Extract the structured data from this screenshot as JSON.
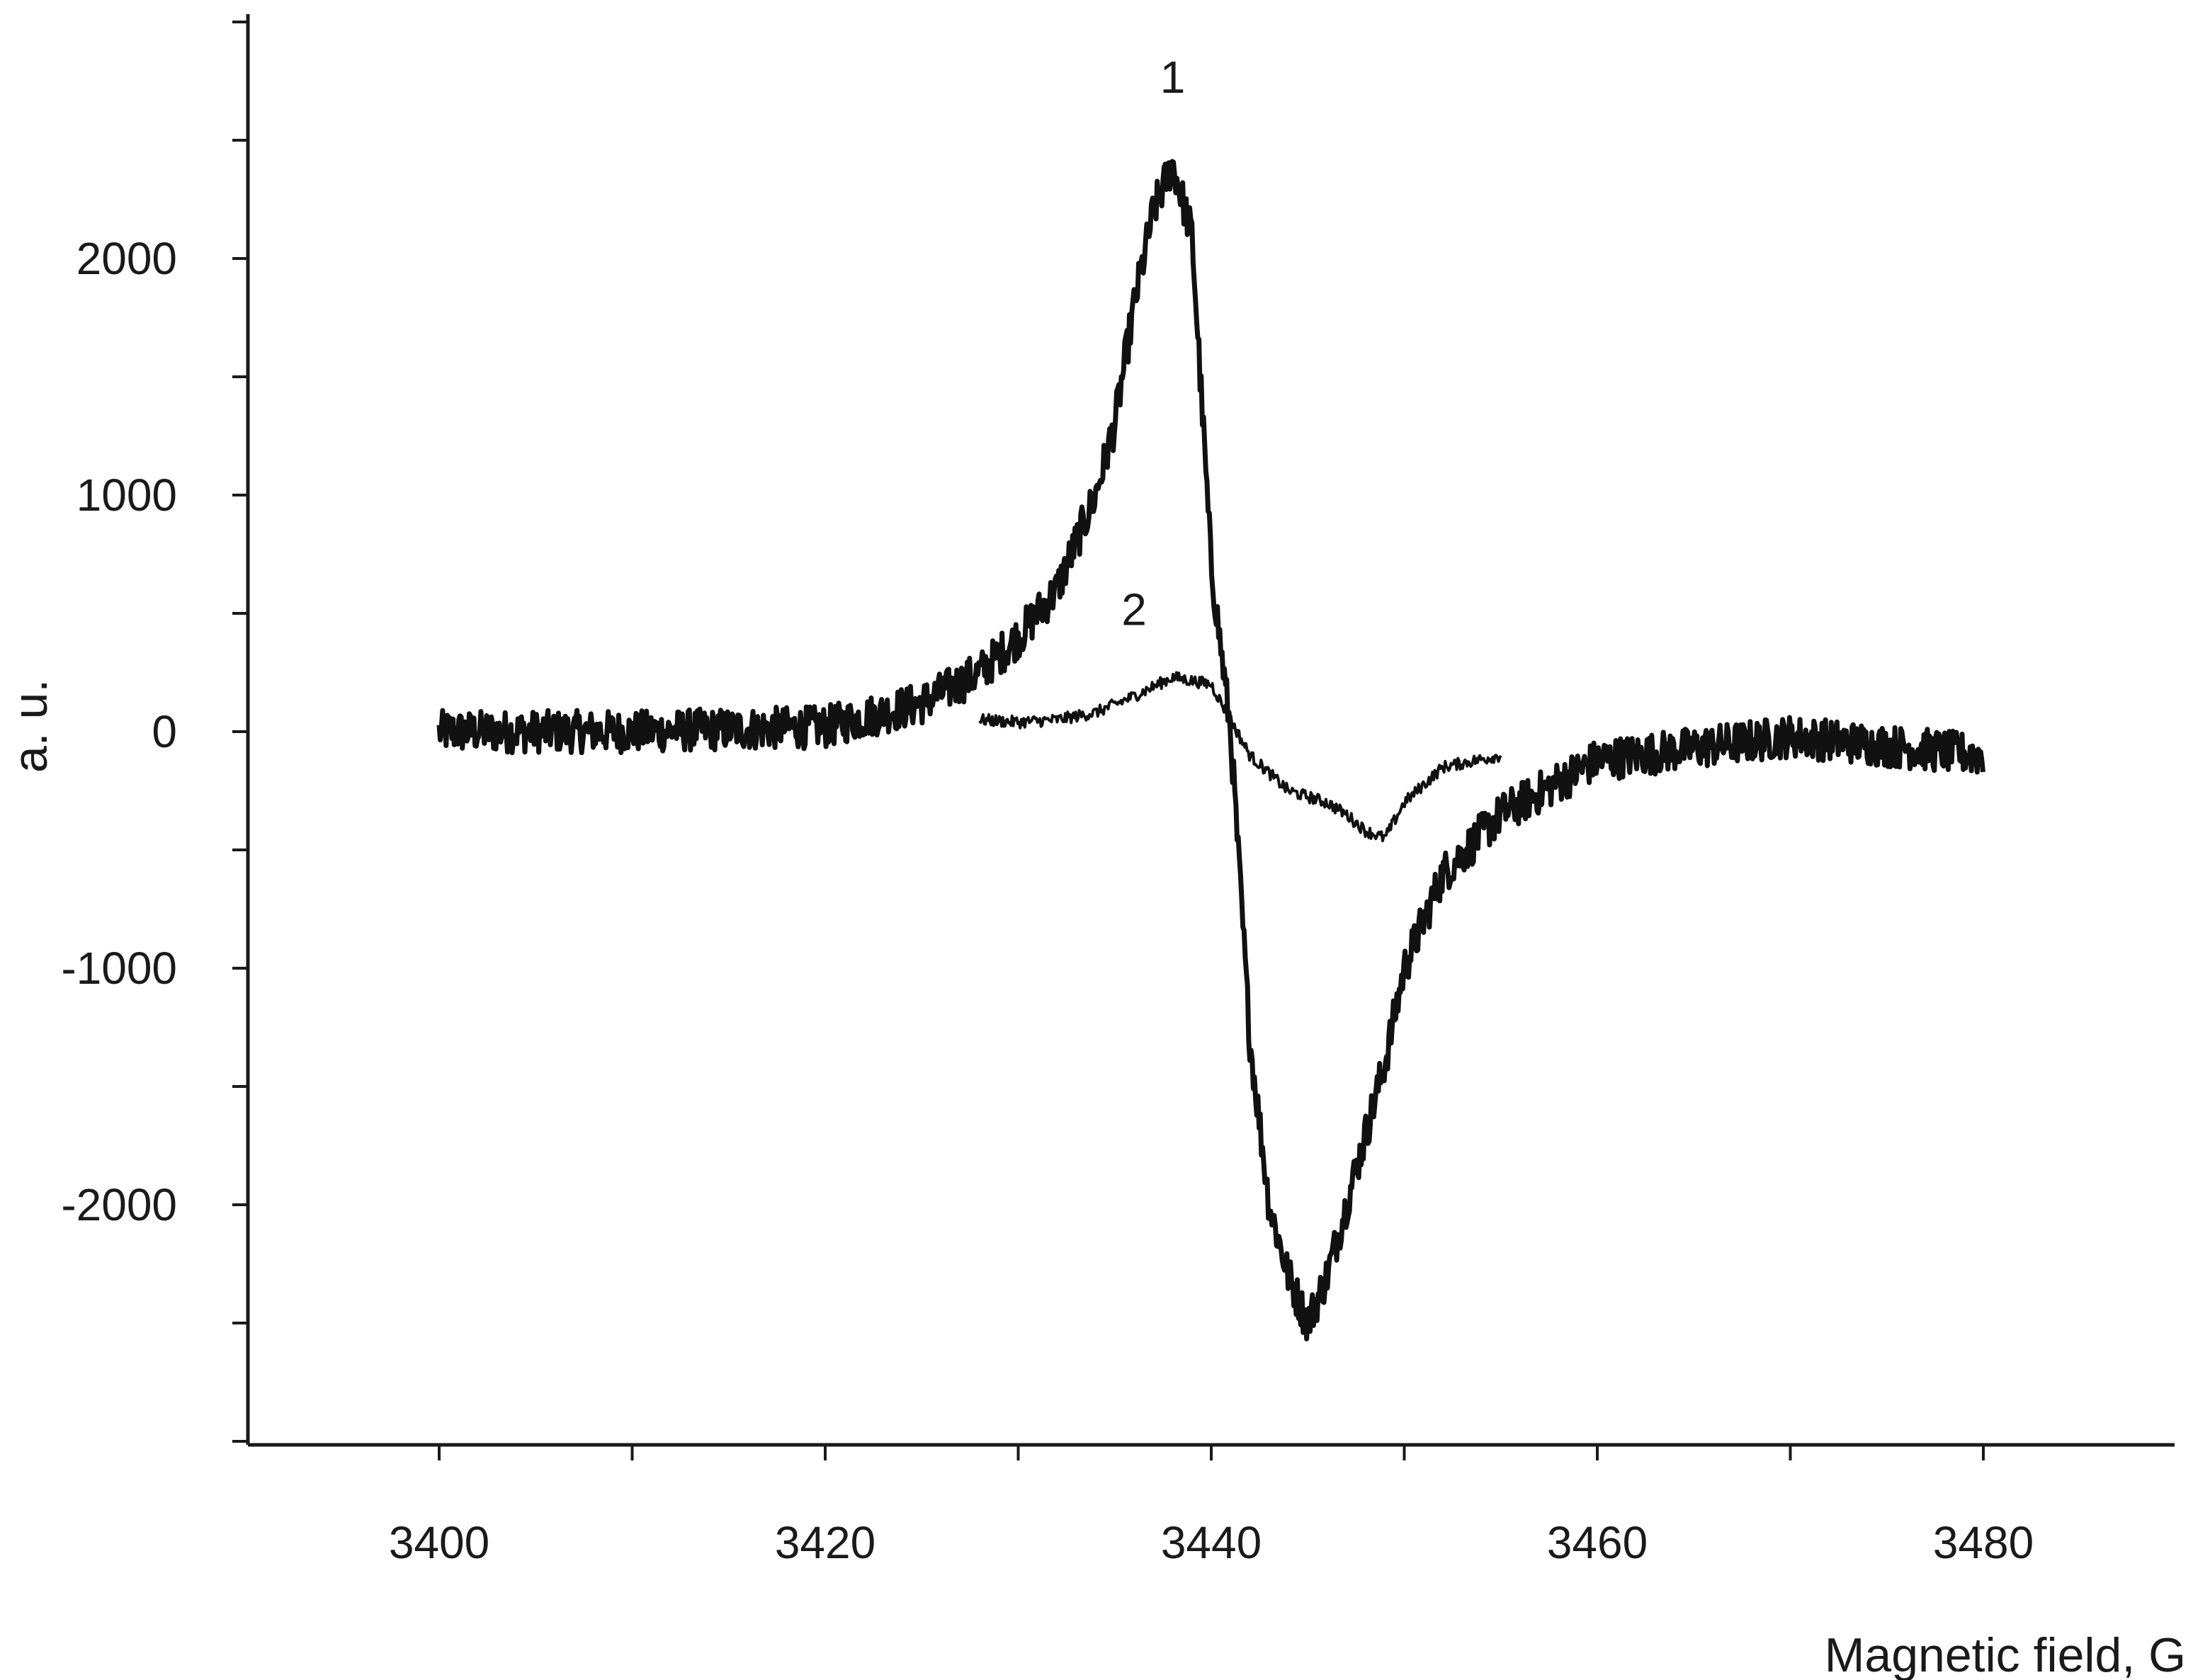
{
  "chart_data": {
    "type": "line",
    "title": "",
    "xlabel": "Magnetic field, G",
    "ylabel": "a. u.",
    "xlim": [
      3390,
      3490
    ],
    "ylim": [
      -3000,
      3000
    ],
    "x_ticks": [
      3400,
      3420,
      3440,
      3460,
      3480
    ],
    "x_tick_labels": [
      "3400",
      "3420",
      "3440",
      "3460",
      "3480"
    ],
    "y_ticks": [
      2000,
      1000,
      0,
      -1000,
      -2000
    ],
    "y_tick_labels": [
      "2000",
      "1000",
      "0",
      "-1000",
      "-2000"
    ],
    "grid": false,
    "legend": "none",
    "annotations": [
      {
        "text": "1",
        "x": 3438,
        "y": 2700
      },
      {
        "text": "2",
        "x": 3436,
        "y": 450
      }
    ],
    "series": [
      {
        "label": "1",
        "stroke_width": 7,
        "noise": 90,
        "x": [
          3400,
          3410,
          3420,
          3425,
          3428,
          3430,
          3432,
          3434,
          3435,
          3436,
          3437,
          3438,
          3439,
          3440,
          3441,
          3442,
          3443,
          3444,
          3445,
          3446,
          3447,
          3448,
          3449,
          3450,
          3452,
          3455,
          3460,
          3470,
          3480
        ],
        "y": [
          0,
          0,
          20,
          120,
          250,
          400,
          600,
          1000,
          1300,
          1800,
          2200,
          2400,
          2100,
          700,
          0,
          -1300,
          -2000,
          -2300,
          -2500,
          -2300,
          -2000,
          -1700,
          -1400,
          -1000,
          -600,
          -350,
          -120,
          -20,
          -100
        ]
      },
      {
        "label": "2",
        "stroke_width": 4,
        "noise": 25,
        "x": [
          3428,
          3430,
          3432,
          3434,
          3436,
          3438,
          3440,
          3441,
          3442,
          3444,
          3446,
          3447,
          3448,
          3449,
          3450,
          3452,
          3455
        ],
        "y": [
          50,
          40,
          50,
          80,
          150,
          230,
          200,
          50,
          -100,
          -250,
          -300,
          -350,
          -420,
          -450,
          -300,
          -150,
          -100
        ]
      }
    ]
  }
}
